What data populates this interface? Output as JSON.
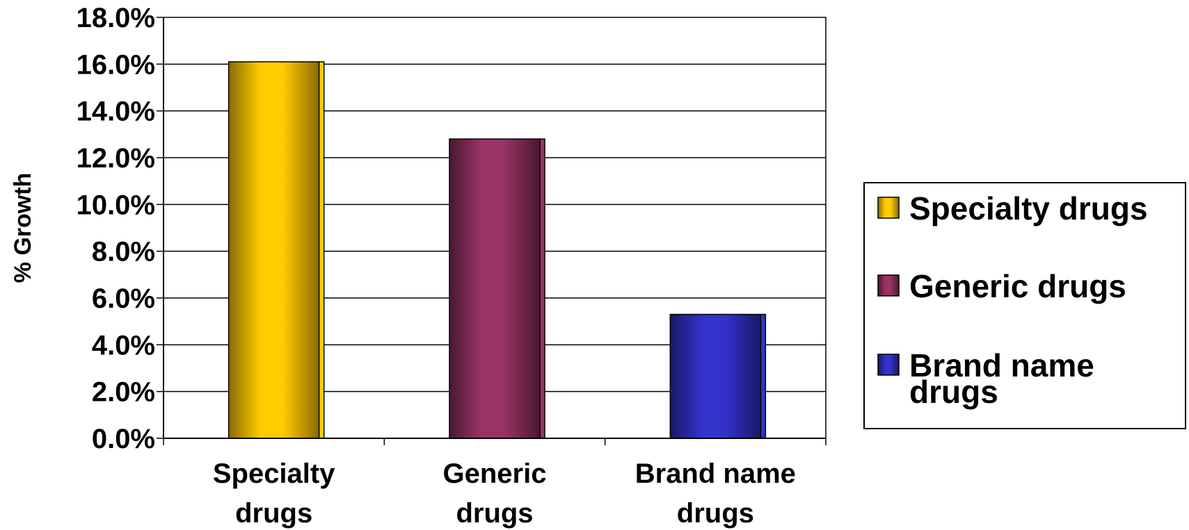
{
  "chart_data": {
    "type": "bar",
    "title": "",
    "xlabel": "",
    "ylabel": "% Growth",
    "ylim": [
      0,
      18
    ],
    "yticks": [
      "0.0%",
      "2.0%",
      "4.0%",
      "6.0%",
      "8.0%",
      "10.0%",
      "12.0%",
      "14.0%",
      "16.0%",
      "18.0%"
    ],
    "grid": true,
    "legend_position": "right",
    "categories": [
      {
        "line1": "Specialty",
        "line2": "drugs"
      },
      {
        "line1": "Generic",
        "line2": "drugs"
      },
      {
        "line1": "Brand name",
        "line2": "drugs"
      }
    ],
    "series": [
      {
        "name": "Specialty drugs",
        "legend_line1": "Specialty drugs",
        "legend_line2": "",
        "color": "#FFCC00",
        "shade": "#8A6A00",
        "value": 16.1
      },
      {
        "name": "Generic drugs",
        "legend_line1": "Generic drugs",
        "legend_line2": "",
        "color": "#993366",
        "shade": "#4A1830",
        "value": 12.8
      },
      {
        "name": "Brand name drugs",
        "legend_line1": "Brand name",
        "legend_line2": "drugs",
        "color": "#3333CC",
        "shade": "#181866",
        "value": 5.3
      }
    ]
  }
}
